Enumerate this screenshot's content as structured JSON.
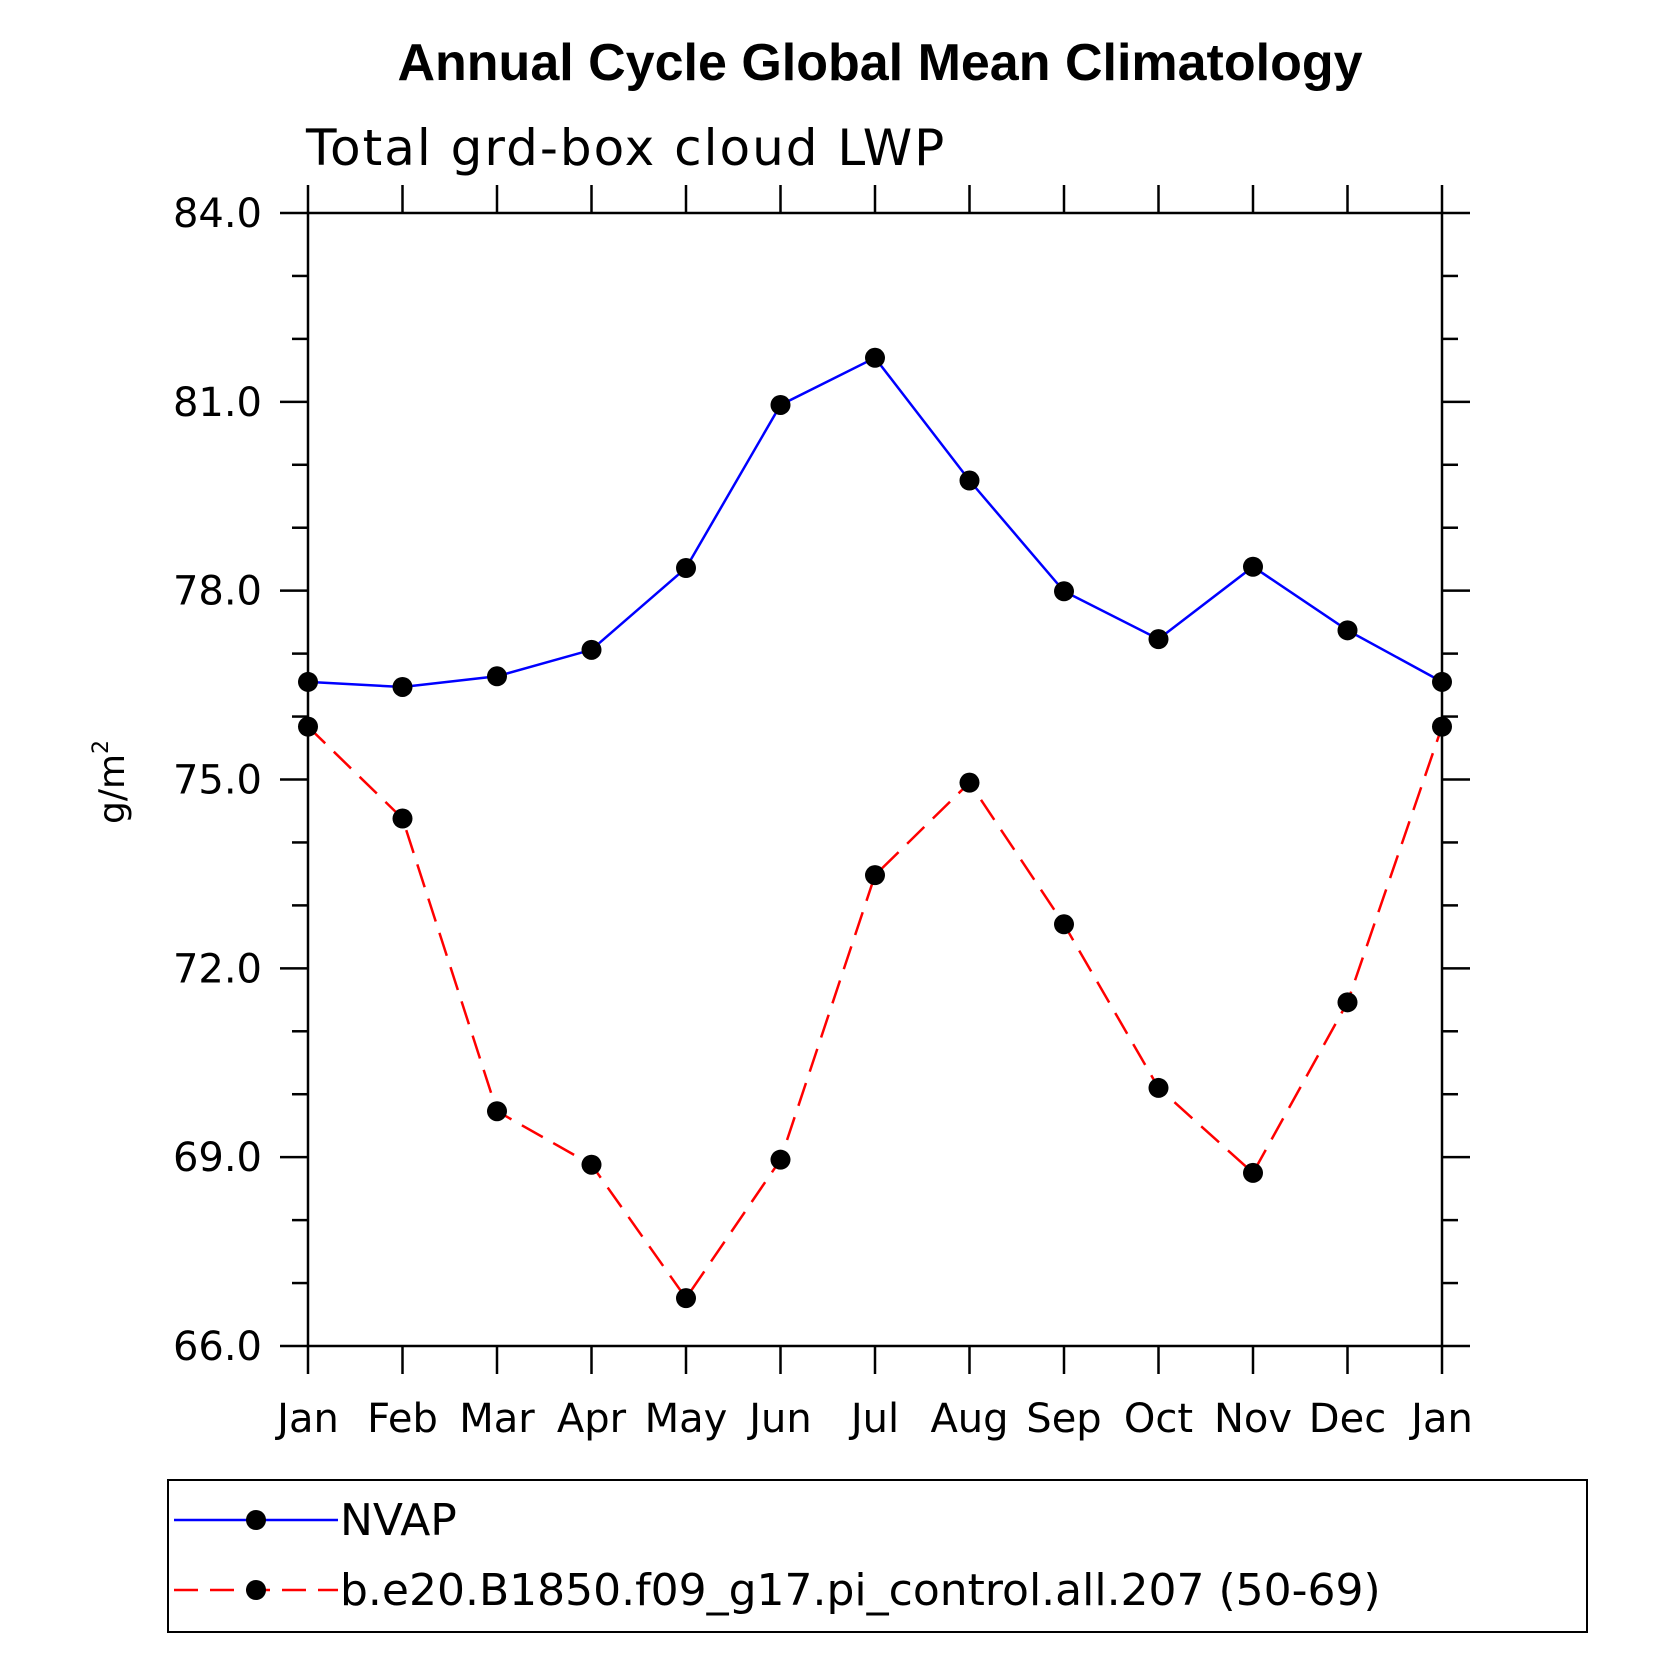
{
  "chart_data": {
    "type": "line",
    "title": "Annual Cycle Global Mean Climatology",
    "subtitle": "Total grd-box cloud LWP",
    "xlabel": "",
    "ylabel": "g/m",
    "ylabel_superscript": "2",
    "categories": [
      "Jan",
      "Feb",
      "Mar",
      "Apr",
      "May",
      "Jun",
      "Jul",
      "Aug",
      "Sep",
      "Oct",
      "Nov",
      "Dec",
      "Jan"
    ],
    "ylim": [
      66.0,
      84.0
    ],
    "yticks": [
      "66.0",
      "69.0",
      "72.0",
      "75.0",
      "78.0",
      "81.0",
      "84.0"
    ],
    "grid": false,
    "legend_position": "bottom",
    "series": [
      {
        "name": "NVAP",
        "color": "#0000ff",
        "dash": "solid",
        "marker": "filled-circle",
        "values": [
          76.55,
          76.47,
          76.64,
          77.06,
          78.36,
          80.95,
          81.7,
          79.75,
          77.99,
          77.23,
          78.38,
          77.37,
          76.55
        ]
      },
      {
        "name": "b.e20.B1850.f09_g17.pi_control.all.207 (50-69)",
        "color": "#ff0000",
        "dash": "dashed",
        "marker": "filled-circle",
        "values": [
          75.84,
          74.38,
          69.73,
          68.88,
          66.76,
          68.96,
          73.48,
          74.95,
          72.7,
          70.1,
          68.75,
          71.46,
          75.84
        ]
      }
    ]
  }
}
